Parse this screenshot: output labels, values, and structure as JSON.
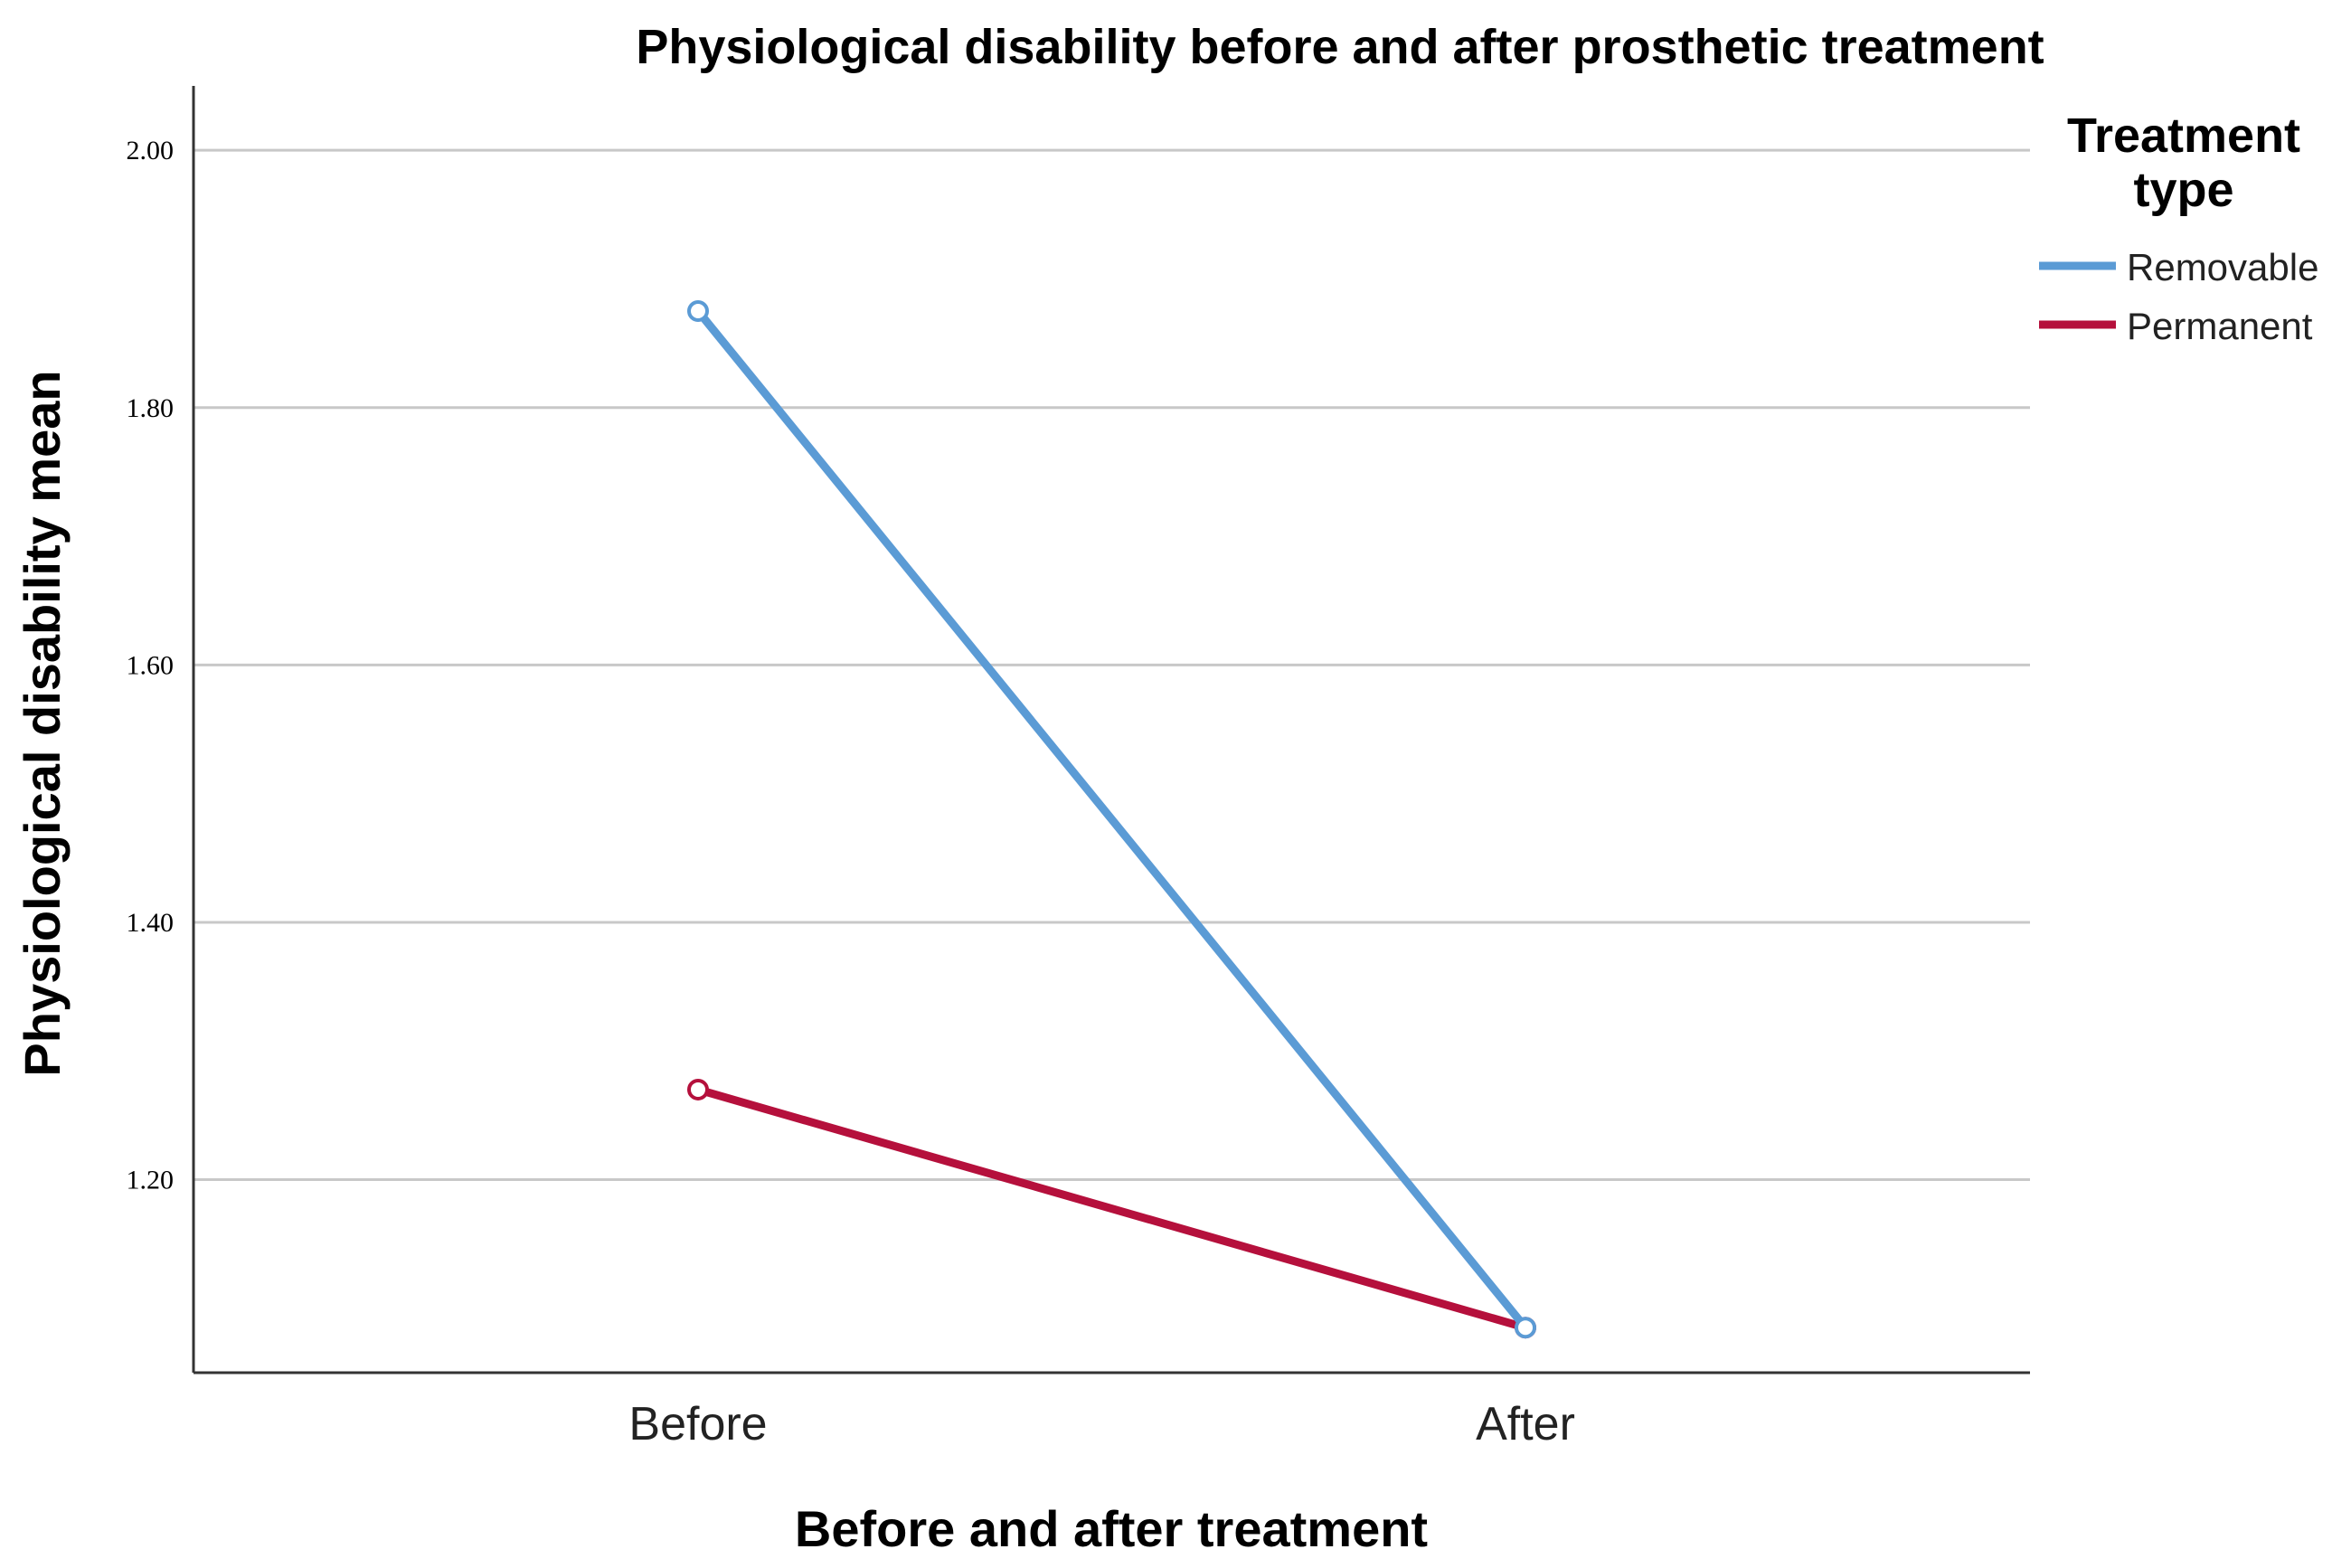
{
  "chart_data": {
    "type": "line",
    "title": "Physiological disability before and after prosthetic treatment",
    "xlabel": "Before and after treatment",
    "ylabel": "Physiological disability mean",
    "categories": [
      "Before",
      "After"
    ],
    "ylim": [
      1.05,
      2.05
    ],
    "yticks": [
      "1.20",
      "1.40",
      "1.60",
      "1.80",
      "2.00"
    ],
    "ytick_values": [
      1.2,
      1.4,
      1.6,
      1.8,
      2.0
    ],
    "grid": true,
    "legend": {
      "title_line1": "Treatment",
      "title_line2": "type",
      "position": "top-right"
    },
    "series": [
      {
        "name": "Removable",
        "values": [
          1.875,
          1.085
        ],
        "color": "#5b9bd5"
      },
      {
        "name": "Permanent",
        "values": [
          1.27,
          1.085
        ],
        "color": "#b5103c"
      }
    ]
  }
}
